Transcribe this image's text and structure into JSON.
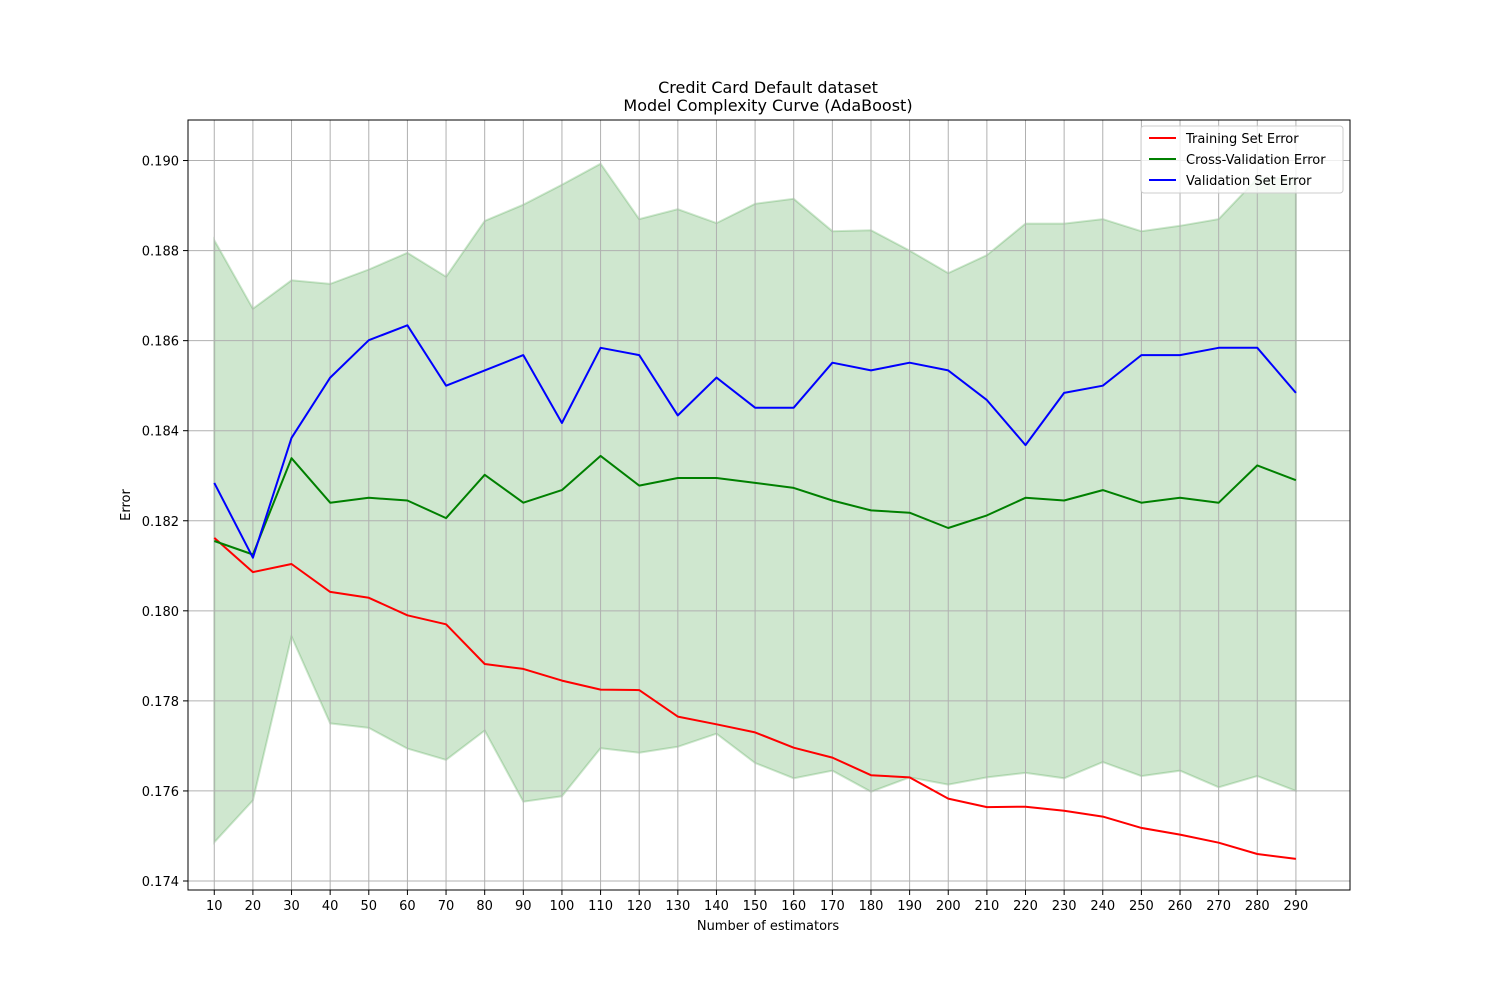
{
  "chart_data": {
    "type": "line",
    "title": "Credit Card Default dataset",
    "subtitle": "Model Complexity Curve (AdaBoost)",
    "xlabel": "Number of estimators",
    "ylabel": "Error",
    "ylim": [
      0.1738,
      0.1909
    ],
    "xlim": [
      3.2,
      304
    ],
    "grid": true,
    "legend_position": "top-right",
    "x": [
      10,
      20,
      30,
      40,
      50,
      60,
      70,
      80,
      90,
      100,
      110,
      120,
      130,
      140,
      150,
      160,
      170,
      180,
      190,
      200,
      210,
      220,
      230,
      240,
      250,
      260,
      270,
      280,
      290
    ],
    "yticks": [
      "0.174",
      "0.176",
      "0.178",
      "0.180",
      "0.182",
      "0.184",
      "0.186",
      "0.188",
      "0.190"
    ],
    "ytick_values": [
      0.174,
      0.176,
      0.178,
      0.18,
      0.182,
      0.184,
      0.186,
      0.188,
      0.19
    ],
    "series": [
      {
        "name": "Training Set Error",
        "color": "#ff0000",
        "values": [
          0.18162,
          0.18086,
          0.18104,
          0.18042,
          0.18029,
          0.1799,
          0.1797,
          0.17882,
          0.17871,
          0.17845,
          0.17825,
          0.17824,
          0.17765,
          0.17748,
          0.1773,
          0.17696,
          0.17674,
          0.17635,
          0.1763,
          0.17583,
          0.17564,
          0.17565,
          0.17556,
          0.17543,
          0.17518,
          0.17503,
          0.17485,
          0.1746,
          0.17449
        ]
      },
      {
        "name": "Cross-Validation Error",
        "color": "#008000",
        "values": [
          0.18155,
          0.18125,
          0.18339,
          0.1824,
          0.18251,
          0.18245,
          0.18206,
          0.18302,
          0.1824,
          0.18268,
          0.18344,
          0.18278,
          0.18295,
          0.18295,
          0.18284,
          0.18273,
          0.18245,
          0.18223,
          0.18218,
          0.18184,
          0.18212,
          0.18251,
          0.18245,
          0.18268,
          0.1824,
          0.18251,
          0.1824,
          0.18323,
          0.1829
        ]
      },
      {
        "name": "Validation Set Error",
        "color": "#0000ff",
        "values": [
          0.18284,
          0.18118,
          0.18384,
          0.18518,
          0.18601,
          0.18634,
          0.185,
          0.18534,
          0.18568,
          0.18417,
          0.18584,
          0.18568,
          0.18434,
          0.18518,
          0.18451,
          0.18451,
          0.18551,
          0.18534,
          0.18551,
          0.18534,
          0.18468,
          0.18368,
          0.18484,
          0.185,
          0.18568,
          0.18568,
          0.18584,
          0.18584,
          0.18484
        ]
      }
    ],
    "band": {
      "color": "#008000",
      "upper": [
        0.18823,
        0.18671,
        0.18734,
        0.18726,
        0.18758,
        0.18795,
        0.18742,
        0.18866,
        0.18902,
        0.18946,
        0.18993,
        0.1887,
        0.18892,
        0.18861,
        0.18904,
        0.18915,
        0.18843,
        0.18845,
        0.188,
        0.1875,
        0.1879,
        0.1886,
        0.1886,
        0.1887,
        0.18843,
        0.18855,
        0.1887,
        0.1896,
        0.1896
      ],
      "lower": [
        0.17486,
        0.17579,
        0.17943,
        0.1775,
        0.1774,
        0.17694,
        0.17669,
        0.17734,
        0.17576,
        0.17588,
        0.17695,
        0.17685,
        0.17698,
        0.17727,
        0.17662,
        0.17628,
        0.17645,
        0.17598,
        0.1763,
        0.17614,
        0.1763,
        0.1764,
        0.17628,
        0.17664,
        0.17633,
        0.17645,
        0.17608,
        0.17633,
        0.176
      ]
    }
  }
}
